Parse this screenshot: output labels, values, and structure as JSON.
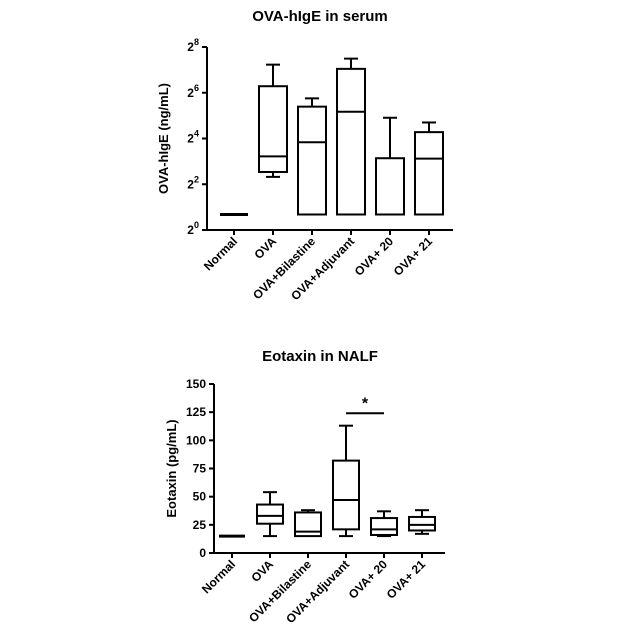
{
  "chart_data": [
    {
      "type": "boxplot",
      "title": "OVA-hIgE in serum",
      "ylabel": "OVA-hIgE (ng/mL)",
      "yscale": "log2",
      "ylim": [
        1,
        256
      ],
      "yticks": [
        1,
        4,
        16,
        64,
        256
      ],
      "ytick_labels": [
        {
          "base": "2",
          "exp": "0"
        },
        {
          "base": "2",
          "exp": "2"
        },
        {
          "base": "2",
          "exp": "4"
        },
        {
          "base": "2",
          "exp": "6"
        },
        {
          "base": "2",
          "exp": "8"
        }
      ],
      "categories": [
        "Normal",
        "OVA",
        "OVA+Bilastine",
        "OVA+Adjuvant",
        "OVA+ 20",
        "OVA+ 21"
      ],
      "boxes": [
        {
          "min": 1.6,
          "q1": 1.6,
          "median": 1.6,
          "q3": 1.6,
          "max": 1.6
        },
        {
          "min": 5.0,
          "q1": 5.8,
          "median": 9.3,
          "q3": 78,
          "max": 150
        },
        {
          "min": 1.6,
          "q1": 1.6,
          "median": 14.3,
          "q3": 42,
          "max": 54
        },
        {
          "min": 1.6,
          "q1": 1.6,
          "median": 36,
          "q3": 132,
          "max": 180
        },
        {
          "min": 1.6,
          "q1": 1.6,
          "median": 1.6,
          "q3": 8.8,
          "max": 30
        },
        {
          "min": 1.6,
          "q1": 1.6,
          "median": 8.7,
          "q3": 19.4,
          "max": 26
        }
      ],
      "annotations": []
    },
    {
      "type": "boxplot",
      "title": "Eotaxin in NALF",
      "ylabel": "Eotaxin (pg/mL)",
      "yscale": "linear",
      "ylim": [
        0,
        150
      ],
      "yticks": [
        0,
        25,
        50,
        75,
        100,
        125,
        150
      ],
      "ytick_labels": [
        "0",
        "25",
        "50",
        "75",
        "100",
        "125",
        "150"
      ],
      "categories": [
        "Normal",
        "OVA",
        "OVA+Bilastine",
        "OVA+Adjuvant",
        "OVA+ 20",
        "OVA+ 21"
      ],
      "boxes": [
        {
          "min": 15,
          "q1": 15,
          "median": 15,
          "q3": 15,
          "max": 15
        },
        {
          "min": 15,
          "q1": 26,
          "median": 33,
          "q3": 43,
          "max": 54
        },
        {
          "min": 15,
          "q1": 15,
          "median": 19,
          "q3": 36,
          "max": 38
        },
        {
          "min": 15,
          "q1": 21,
          "median": 47,
          "q3": 82,
          "max": 113
        },
        {
          "min": 15,
          "q1": 16,
          "median": 21,
          "q3": 31,
          "max": 37
        },
        {
          "min": 17,
          "q1": 20,
          "median": 25,
          "q3": 32,
          "max": 38
        }
      ],
      "annotations": [
        {
          "text": "*",
          "from_category": "OVA+Adjuvant",
          "to_category": "OVA+ 20",
          "y": 124
        }
      ]
    }
  ]
}
